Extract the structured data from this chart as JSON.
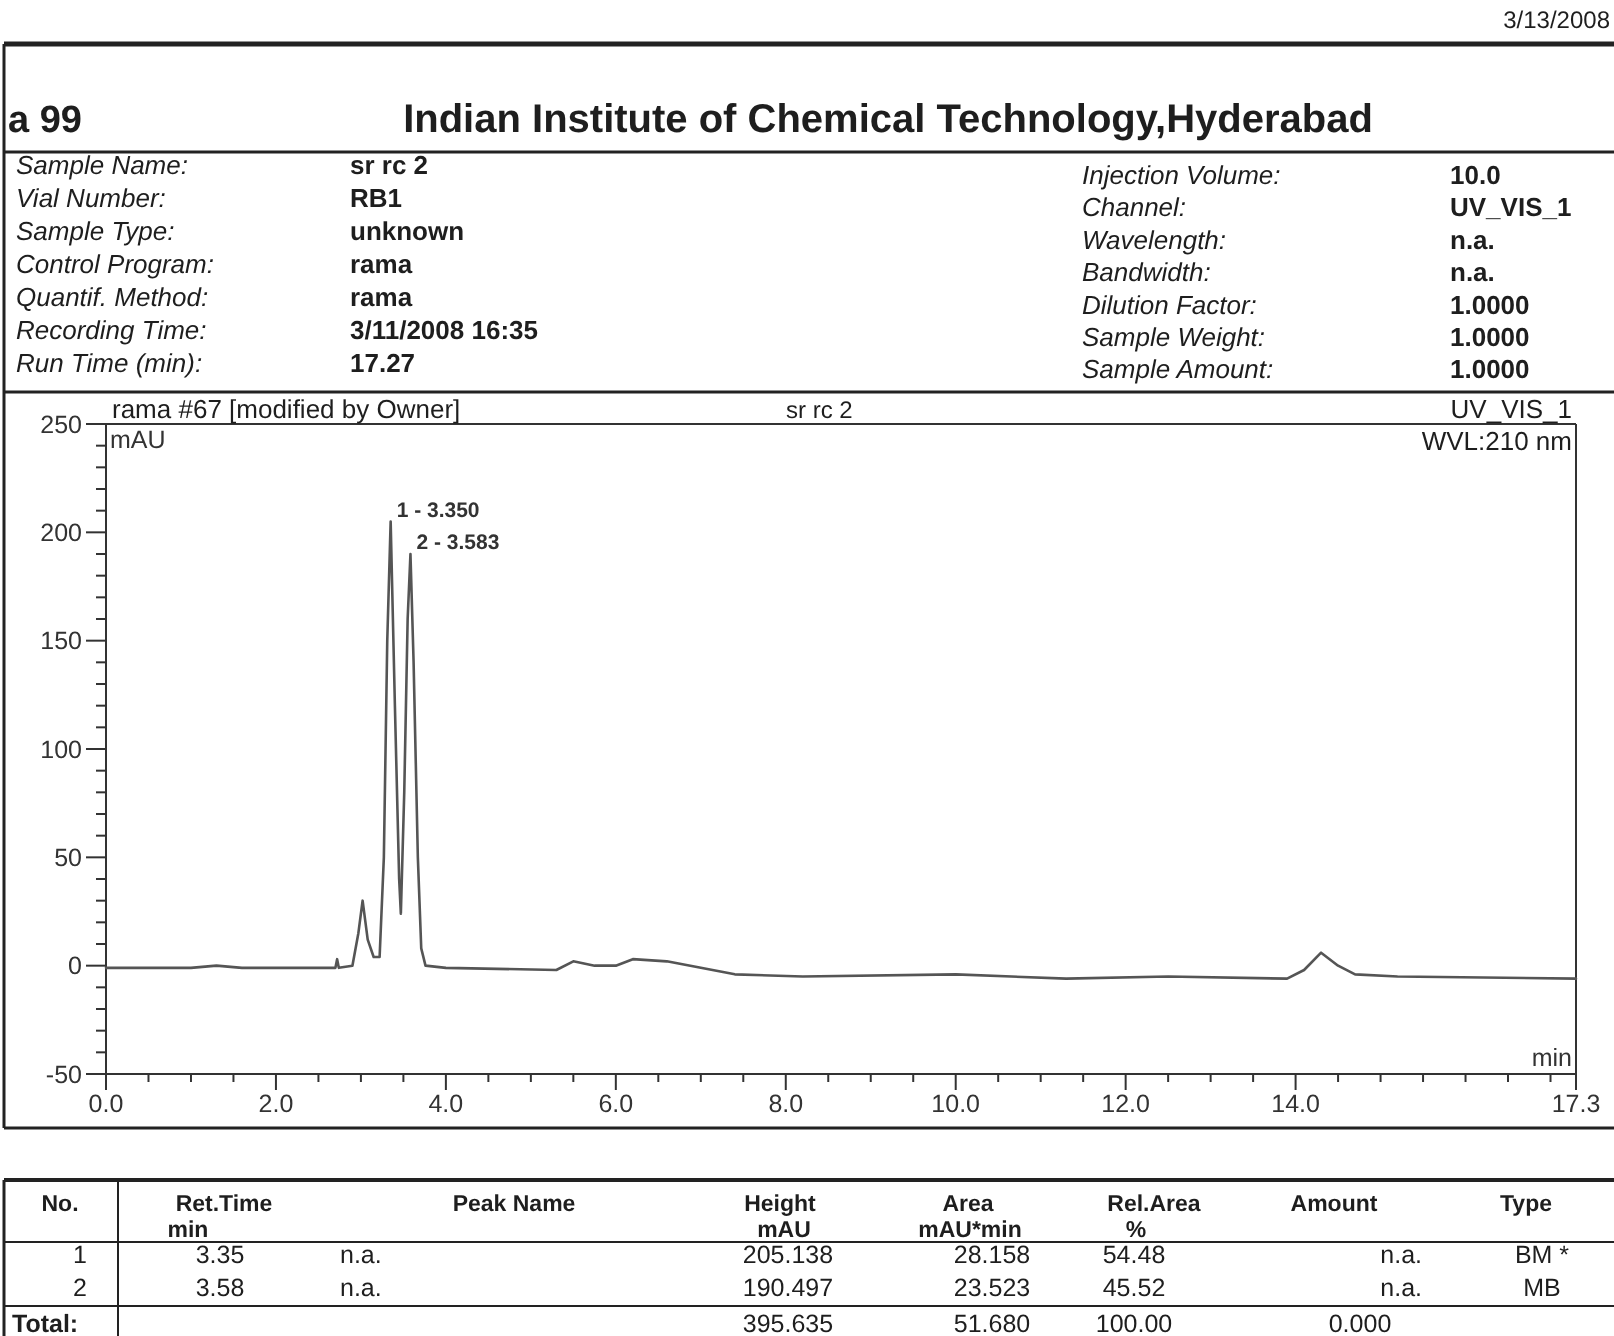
{
  "chart_data": {
    "type": "line",
    "title": "Indian Institute of Chemical Technology,Hyderabad",
    "xlabel": "min",
    "ylabel": "mAU",
    "color": "#555555",
    "x": [
      0,
      1.0,
      1.3,
      1.6,
      2.7,
      2.72,
      2.74,
      2.9,
      2.97,
      3.02,
      3.08,
      3.15,
      3.22,
      3.27,
      3.31,
      3.35,
      3.4,
      3.45,
      3.47,
      3.51,
      3.55,
      3.583,
      3.62,
      3.67,
      3.71,
      3.76,
      4.0,
      5.3,
      5.5,
      5.75,
      6.0,
      6.2,
      6.6,
      7.4,
      8.2,
      10.0,
      11.3,
      12.5,
      13.9,
      14.1,
      14.3,
      14.5,
      14.7,
      15.2,
      17.3
    ],
    "values": [
      -1,
      -1,
      0,
      -1,
      -1,
      3,
      -1,
      0,
      15,
      30,
      12,
      4,
      4,
      50,
      150,
      205,
      120,
      40,
      24,
      80,
      160,
      190,
      140,
      50,
      8,
      0,
      -1,
      -2,
      2,
      0,
      0,
      3,
      2,
      -4,
      -5,
      -4,
      -6,
      -5,
      -6,
      -2,
      6,
      0,
      -4,
      -5,
      -6
    ],
    "xlim": [
      0,
      17.3
    ],
    "ylim": [
      -50,
      250
    ],
    "xticks": [
      {
        "value": 0,
        "label": "0.0"
      },
      {
        "value": 0.5,
        "label": null
      },
      {
        "value": 1,
        "label": null
      },
      {
        "value": 1.5,
        "label": null
      },
      {
        "value": 2,
        "label": "2.0"
      },
      {
        "value": 2.5,
        "label": null
      },
      {
        "value": 3,
        "label": null
      },
      {
        "value": 3.5,
        "label": null
      },
      {
        "value": 4,
        "label": "4.0"
      },
      {
        "value": 4.5,
        "label": null
      },
      {
        "value": 5,
        "label": null
      },
      {
        "value": 5.5,
        "label": null
      },
      {
        "value": 6,
        "label": "6.0"
      },
      {
        "value": 6.5,
        "label": null
      },
      {
        "value": 7,
        "label": null
      },
      {
        "value": 7.5,
        "label": null
      },
      {
        "value": 8,
        "label": "8.0"
      },
      {
        "value": 8.5,
        "label": null
      },
      {
        "value": 9,
        "label": null
      },
      {
        "value": 9.5,
        "label": null
      },
      {
        "value": 10,
        "label": "10.0"
      },
      {
        "value": 10.5,
        "label": null
      },
      {
        "value": 11,
        "label": null
      },
      {
        "value": 11.5,
        "label": null
      },
      {
        "value": 12,
        "label": "12.0"
      },
      {
        "value": 12.5,
        "label": null
      },
      {
        "value": 13,
        "label": null
      },
      {
        "value": 13.5,
        "label": null
      },
      {
        "value": 14,
        "label": "14.0"
      },
      {
        "value": 14.5,
        "label": null
      },
      {
        "value": 15,
        "label": null
      },
      {
        "value": 15.5,
        "label": null
      },
      {
        "value": 16,
        "label": null
      },
      {
        "value": 16.5,
        "label": null
      },
      {
        "value": 17,
        "label": null
      },
      17.3
    ],
    "yticks": [
      -50,
      {
        "value": -40,
        "label": null
      },
      {
        "value": -30,
        "label": null
      },
      {
        "value": -20,
        "label": null
      },
      {
        "value": -10,
        "label": null
      },
      0,
      {
        "value": 10,
        "label": null
      },
      {
        "value": 20,
        "label": null
      },
      {
        "value": 30,
        "label": null
      },
      {
        "value": 40,
        "label": null
      },
      50,
      {
        "value": 60,
        "label": null
      },
      {
        "value": 70,
        "label": null
      },
      {
        "value": 80,
        "label": null
      },
      {
        "value": 90,
        "label": null
      },
      100,
      {
        "value": 110,
        "label": null
      },
      {
        "value": 120,
        "label": null
      },
      {
        "value": 130,
        "label": null
      },
      {
        "value": 140,
        "label": null
      },
      150,
      {
        "value": 160,
        "label": null
      },
      {
        "value": 170,
        "label": null
      },
      {
        "value": 180,
        "label": null
      },
      {
        "value": 190,
        "label": null
      },
      200,
      {
        "value": 210,
        "label": null
      },
      {
        "value": 220,
        "label": null
      },
      {
        "value": 230,
        "label": null
      },
      {
        "value": 240,
        "label": null
      },
      250
    ],
    "annotations": [
      "3/13/2008",
      "a 99",
      "Sample Name:",
      "sr rc 2",
      "Vial Number:",
      "RB1",
      "Sample Type:",
      "unknown",
      "Control Program:",
      "rama",
      "Quantif. Method:",
      "rama",
      "Recording Time:",
      "3/11/2008 16:35",
      "Run Time (min):",
      "17.27",
      "Injection Volume:",
      "10.0",
      "Channel:",
      "UV_VIS_1",
      "Wavelength:",
      "n.a.",
      "Bandwidth:",
      "n.a.",
      "Dilution Factor:",
      "1.0000",
      "Sample Weight:",
      "1.0000",
      "Sample Amount:",
      "1.0000",
      "rama #67 [modified by Owner]",
      "sr rc 2",
      "UV_VIS_1",
      "WVL:210 nm",
      {
        "text": "1 - 3.350",
        "x": 3.35,
        "y": 205.138
      },
      {
        "text": "2 - 3.583",
        "x": 3.583,
        "y": 190.497
      },
      "No.",
      "Ret.Time",
      "min",
      "Peak Name",
      "Height",
      "mAU",
      "Area",
      "mAU*min",
      "Rel.Area",
      "%",
      "Amount",
      "Type",
      "1",
      "3.35",
      "n.a.",
      "205.138",
      "28.158",
      "54.48",
      "n.a.",
      "BM *",
      "2",
      "3.58",
      "n.a.",
      "190.497",
      "23.523",
      "45.52",
      "n.a.",
      "MB",
      "Total:",
      "395.635",
      "51.680",
      "100.00",
      "0.000"
    ]
  }
}
